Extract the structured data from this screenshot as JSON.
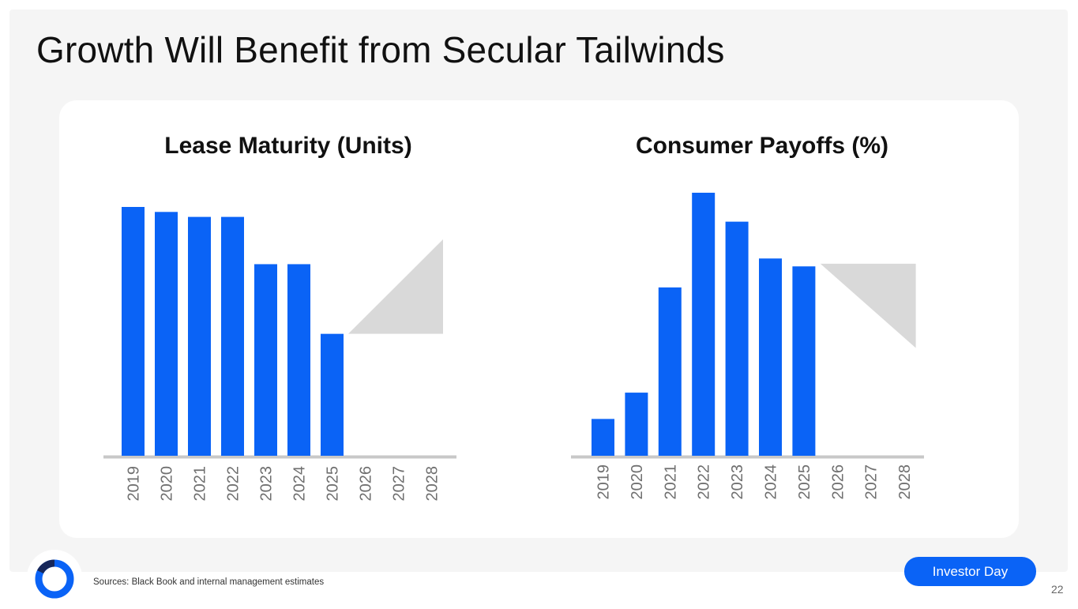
{
  "slide": {
    "title": "Growth Will Benefit from Secular Tailwinds",
    "source": "Sources: Black Book and internal management estimates",
    "badge": "Investor Day",
    "page_number": "22"
  },
  "colors": {
    "bar": "#0a63f6",
    "projection": "#d9d9d9",
    "axis": "#c8c8c8",
    "badge": "#0a63f6",
    "logo": "#0a63f6",
    "logo_inner": "#17275a"
  },
  "icons": {
    "logo": "company-logo-icon"
  },
  "chart_data": [
    {
      "type": "bar",
      "title": "Lease Maturity (Units)",
      "categories": [
        "2019",
        "2020",
        "2021",
        "2022",
        "2023",
        "2024",
        "2025",
        "2026",
        "2027",
        "2028"
      ],
      "values": [
        100,
        98,
        96,
        96,
        77,
        77,
        49,
        null,
        null,
        null
      ],
      "projection": {
        "direction": "up",
        "from_category": "2026",
        "to_category": "2028",
        "start_value": 49,
        "end_value": 87
      },
      "ylim": [
        0,
        100
      ],
      "xlabel": "",
      "ylabel": ""
    },
    {
      "type": "bar",
      "title": "Consumer Payoffs (%)",
      "categories": [
        "2019",
        "2020",
        "2021",
        "2022",
        "2023",
        "2024",
        "2025",
        "2026",
        "2027",
        "2028"
      ],
      "values": [
        14,
        24,
        64,
        100,
        89,
        75,
        72,
        null,
        null,
        null
      ],
      "projection": {
        "direction": "down",
        "from_category": "2026",
        "to_category": "2028",
        "start_value": 73,
        "end_value": 41
      },
      "ylim": [
        0,
        100
      ],
      "xlabel": "",
      "ylabel": ""
    }
  ]
}
